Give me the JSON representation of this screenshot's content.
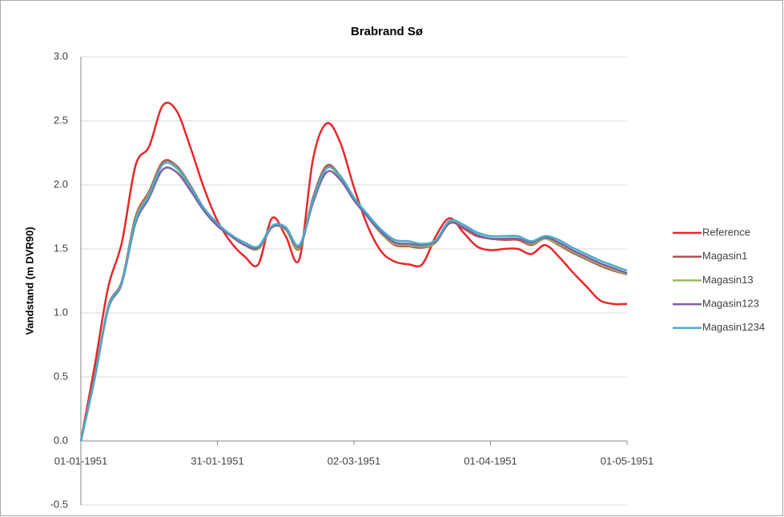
{
  "chart_data": {
    "type": "line",
    "title": "Brabrand Sø",
    "y_label": "Vandstand (m DVR90)",
    "x": [
      "1951-01-01",
      "1951-01-04",
      "1951-01-07",
      "1951-01-10",
      "1951-01-13",
      "1951-01-16",
      "1951-01-19",
      "1951-01-22",
      "1951-01-25",
      "1951-01-28",
      "1951-01-31",
      "1951-02-03",
      "1951-02-06",
      "1951-02-09",
      "1951-02-12",
      "1951-02-15",
      "1951-02-18",
      "1951-02-21",
      "1951-02-24",
      "1951-02-27",
      "1951-03-02",
      "1951-03-05",
      "1951-03-08",
      "1951-03-11",
      "1951-03-14",
      "1951-03-17",
      "1951-03-20",
      "1951-03-23",
      "1951-03-26",
      "1951-03-29",
      "1951-04-01",
      "1951-04-04",
      "1951-04-07",
      "1951-04-10",
      "1951-04-13",
      "1951-04-16",
      "1951-04-19",
      "1951-04-22",
      "1951-04-25",
      "1951-04-28",
      "1951-05-01"
    ],
    "series": [
      {
        "name": "Reference",
        "color": "#e8262a",
        "values": [
          0.0,
          0.58,
          1.2,
          1.55,
          2.15,
          2.3,
          2.62,
          2.58,
          2.3,
          1.98,
          1.72,
          1.55,
          1.44,
          1.38,
          1.74,
          1.6,
          1.42,
          2.2,
          2.48,
          2.33,
          1.98,
          1.68,
          1.48,
          1.4,
          1.38,
          1.38,
          1.6,
          1.74,
          1.63,
          1.52,
          1.49,
          1.5,
          1.5,
          1.46,
          1.53,
          1.44,
          1.32,
          1.21,
          1.1,
          1.07,
          1.07
        ]
      },
      {
        "name": "Magasin1",
        "color": "#b5524a",
        "values": [
          0.0,
          0.5,
          1.05,
          1.25,
          1.75,
          1.95,
          2.18,
          2.15,
          2.0,
          1.82,
          1.7,
          1.6,
          1.53,
          1.5,
          1.67,
          1.65,
          1.5,
          1.9,
          2.15,
          2.07,
          1.9,
          1.75,
          1.62,
          1.53,
          1.52,
          1.51,
          1.55,
          1.71,
          1.66,
          1.6,
          1.58,
          1.57,
          1.57,
          1.53,
          1.58,
          1.53,
          1.47,
          1.42,
          1.37,
          1.33,
          1.3
        ]
      },
      {
        "name": "Magasin13",
        "color": "#9bbb59",
        "values": [
          0.0,
          0.49,
          1.04,
          1.24,
          1.73,
          1.93,
          2.16,
          2.13,
          1.98,
          1.81,
          1.69,
          1.6,
          1.53,
          1.5,
          1.67,
          1.65,
          1.51,
          1.88,
          2.13,
          2.06,
          1.89,
          1.75,
          1.62,
          1.54,
          1.53,
          1.52,
          1.55,
          1.71,
          1.67,
          1.61,
          1.58,
          1.58,
          1.58,
          1.54,
          1.58,
          1.54,
          1.48,
          1.43,
          1.38,
          1.34,
          1.3
        ]
      },
      {
        "name": "Magasin123",
        "color": "#7d5fa7",
        "values": [
          0.0,
          0.48,
          1.03,
          1.23,
          1.7,
          1.9,
          2.12,
          2.1,
          1.96,
          1.8,
          1.68,
          1.6,
          1.53,
          1.51,
          1.67,
          1.66,
          1.52,
          1.86,
          2.1,
          2.04,
          1.88,
          1.75,
          1.63,
          1.55,
          1.54,
          1.53,
          1.56,
          1.7,
          1.67,
          1.61,
          1.58,
          1.58,
          1.58,
          1.55,
          1.59,
          1.55,
          1.49,
          1.44,
          1.39,
          1.35,
          1.31
        ]
      },
      {
        "name": "Magasin1234",
        "color": "#4bacc6",
        "values": [
          0.0,
          0.49,
          1.04,
          1.24,
          1.72,
          1.92,
          2.16,
          2.14,
          1.99,
          1.82,
          1.7,
          1.61,
          1.55,
          1.52,
          1.68,
          1.67,
          1.53,
          1.88,
          2.13,
          2.07,
          1.9,
          1.77,
          1.65,
          1.57,
          1.56,
          1.54,
          1.57,
          1.72,
          1.69,
          1.63,
          1.6,
          1.6,
          1.6,
          1.56,
          1.6,
          1.57,
          1.51,
          1.46,
          1.41,
          1.37,
          1.33
        ]
      }
    ],
    "xlim": [
      "1951-01-01",
      "1951-05-01"
    ],
    "xticks": [
      {
        "value": "1951-01-01",
        "label": "01-01-1951"
      },
      {
        "value": "1951-01-31",
        "label": "31-01-1951"
      },
      {
        "value": "1951-03-02",
        "label": "02-03-1951"
      },
      {
        "value": "1951-04-01",
        "label": "01-04-1951"
      },
      {
        "value": "1951-05-01",
        "label": "01-05-1951"
      }
    ],
    "ylim": [
      -0.5,
      3.0
    ],
    "yticks": [
      -0.5,
      {
        "value": 0,
        "label": "0.0"
      },
      0.5,
      {
        "value": 1,
        "label": "1.0"
      },
      1.5,
      {
        "value": 2,
        "label": "2.0"
      },
      2.5,
      {
        "value": 3,
        "label": "3.0"
      }
    ],
    "grid": true,
    "legend": "right"
  }
}
